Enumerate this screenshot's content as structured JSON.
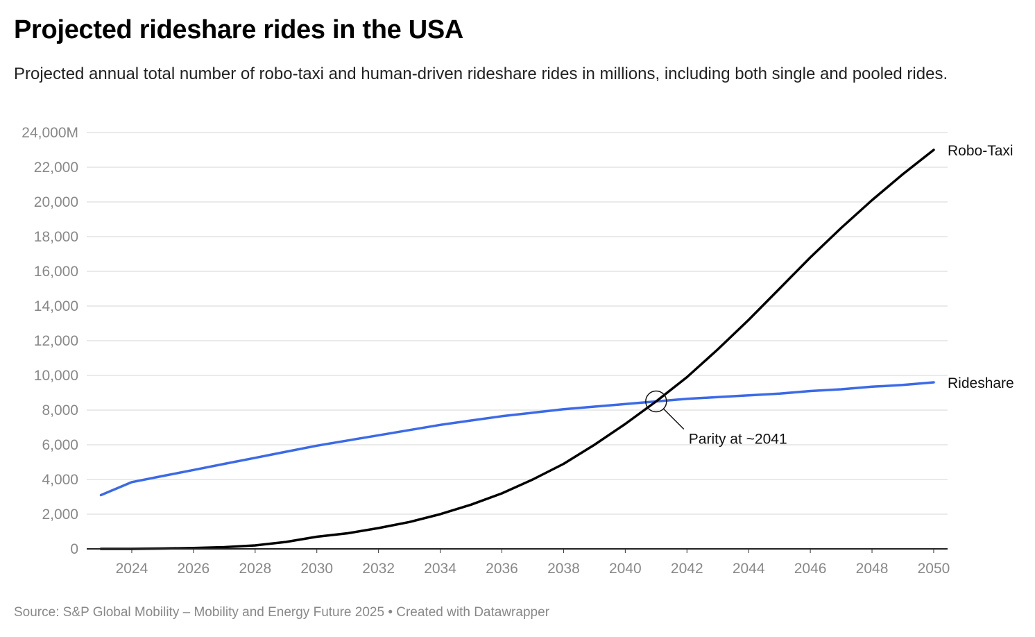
{
  "title": "Projected rideshare rides in the USA",
  "subtitle": "Projected annual total number of robo-taxi and human-driven rideshare rides in millions, including both single and pooled rides.",
  "source": "Source: S&P Global Mobility – Mobility and Energy Future 2025 • Created with Datawrapper",
  "chart_data": {
    "type": "line",
    "title": "Projected rideshare rides in the USA",
    "xlabel": "",
    "ylabel": "",
    "xlim": [
      2023,
      2050
    ],
    "ylim": [
      0,
      24000
    ],
    "grid": true,
    "legend": "direct labels at line ends (right)",
    "x_ticks": [
      "2024",
      "2026",
      "2028",
      "2030",
      "2032",
      "2034",
      "2036",
      "2038",
      "2040",
      "2042",
      "2044",
      "2046",
      "2048",
      "2050"
    ],
    "y_ticks": [
      "0",
      "2,000",
      "4,000",
      "6,000",
      "8,000",
      "10,000",
      "12,000",
      "14,000",
      "16,000",
      "18,000",
      "20,000",
      "22,000",
      "24,000M"
    ],
    "x": [
      2023,
      2024,
      2025,
      2026,
      2027,
      2028,
      2029,
      2030,
      2031,
      2032,
      2033,
      2034,
      2035,
      2036,
      2037,
      2038,
      2039,
      2040,
      2041,
      2042,
      2043,
      2044,
      2045,
      2046,
      2047,
      2048,
      2049,
      2050
    ],
    "series": [
      {
        "name": "Robo-Taxi",
        "color": "#000000",
        "values": [
          0,
          0,
          20,
          50,
          100,
          200,
          400,
          700,
          900,
          1200,
          1550,
          2000,
          2550,
          3200,
          4000,
          4900,
          6000,
          7200,
          8500,
          9900,
          11500,
          13200,
          15000,
          16800,
          18500,
          20100,
          21600,
          23000
        ]
      },
      {
        "name": "Rideshare",
        "color": "#3b6ae8",
        "values": [
          3100,
          3850,
          4200,
          4550,
          4900,
          5250,
          5600,
          5950,
          6250,
          6550,
          6850,
          7150,
          7400,
          7650,
          7850,
          8050,
          8200,
          8350,
          8500,
          8650,
          8750,
          8850,
          8950,
          9100,
          9200,
          9350,
          9450,
          9600
        ]
      }
    ],
    "annotations": [
      {
        "text": "Parity at ~2041",
        "x": 2041,
        "y": 8500
      }
    ]
  }
}
